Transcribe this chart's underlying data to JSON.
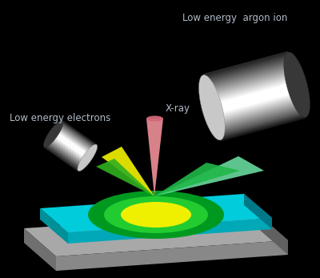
{
  "background_color": "#000000",
  "text_color": "#b0bcc8",
  "label_electrons": "Low energy electrons",
  "label_xray": "X-ray",
  "label_argon": "Low energy  argon ion",
  "platform_cyan_top": "#00c8d8",
  "platform_cyan_side_l": "#008898",
  "platform_cyan_side_r": "#006878",
  "base_gray_top": "#a0a0a0",
  "base_gray_side_l": "#808080",
  "base_gray_side_r": "#686868",
  "green_outer": "#00aa20",
  "green_mid": "#30cc30",
  "yellow_center": "#e8e800",
  "xray_pink": "#f09098",
  "xray_pink_dark": "#d06070",
  "green_beam_light": "#70e8a0",
  "green_beam_dark": "#20c060",
  "yellow_beam": "#e8e000",
  "yellow_beam_dark": "#a09000"
}
